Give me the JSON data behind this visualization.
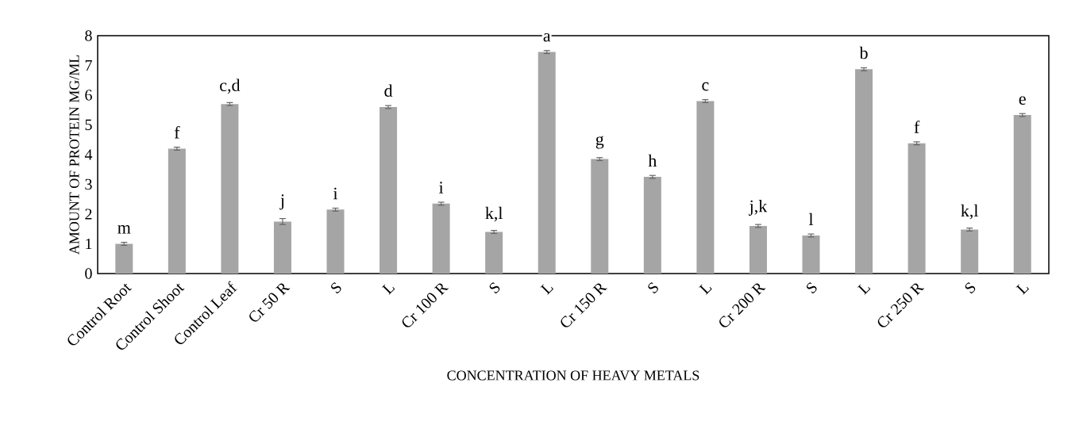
{
  "chart_data": {
    "type": "bar",
    "xlabel": "CONCENTRATION  OF HEAVY  METALS",
    "ylabel": "AMOUNT OF PROTEIN MG/ML",
    "categories": [
      "Control Root",
      "Control Shoot",
      "Control Leaf",
      "Cr 50 R",
      "S",
      "L",
      "Cr 100 R",
      "S",
      "L",
      "Cr 150 R",
      "S",
      "L",
      "Cr 200 R",
      "S",
      "L",
      "Cr 250 R",
      "S",
      "L"
    ],
    "values": [
      1.0,
      4.2,
      5.7,
      1.75,
      2.15,
      5.6,
      2.35,
      1.4,
      7.45,
      3.85,
      3.25,
      5.8,
      1.6,
      1.28,
      6.87,
      4.38,
      1.48,
      5.33
    ],
    "errors": [
      0.05,
      0.05,
      0.05,
      0.1,
      0.05,
      0.05,
      0.05,
      0.05,
      0.05,
      0.05,
      0.05,
      0.05,
      0.05,
      0.05,
      0.05,
      0.05,
      0.05,
      0.05
    ],
    "color": "#a5a5a5",
    "ylim": [
      0,
      8
    ],
    "yticks": [
      0,
      1,
      2,
      3,
      4,
      5,
      6,
      7,
      8
    ],
    "annotations": [
      "m",
      "f",
      "c,d",
      "j",
      "i",
      "d",
      "i",
      "k,l",
      "a",
      "g",
      "h",
      "c",
      "j,k",
      "l",
      "b",
      "f",
      "k,l",
      "e"
    ],
    "grid": false
  }
}
